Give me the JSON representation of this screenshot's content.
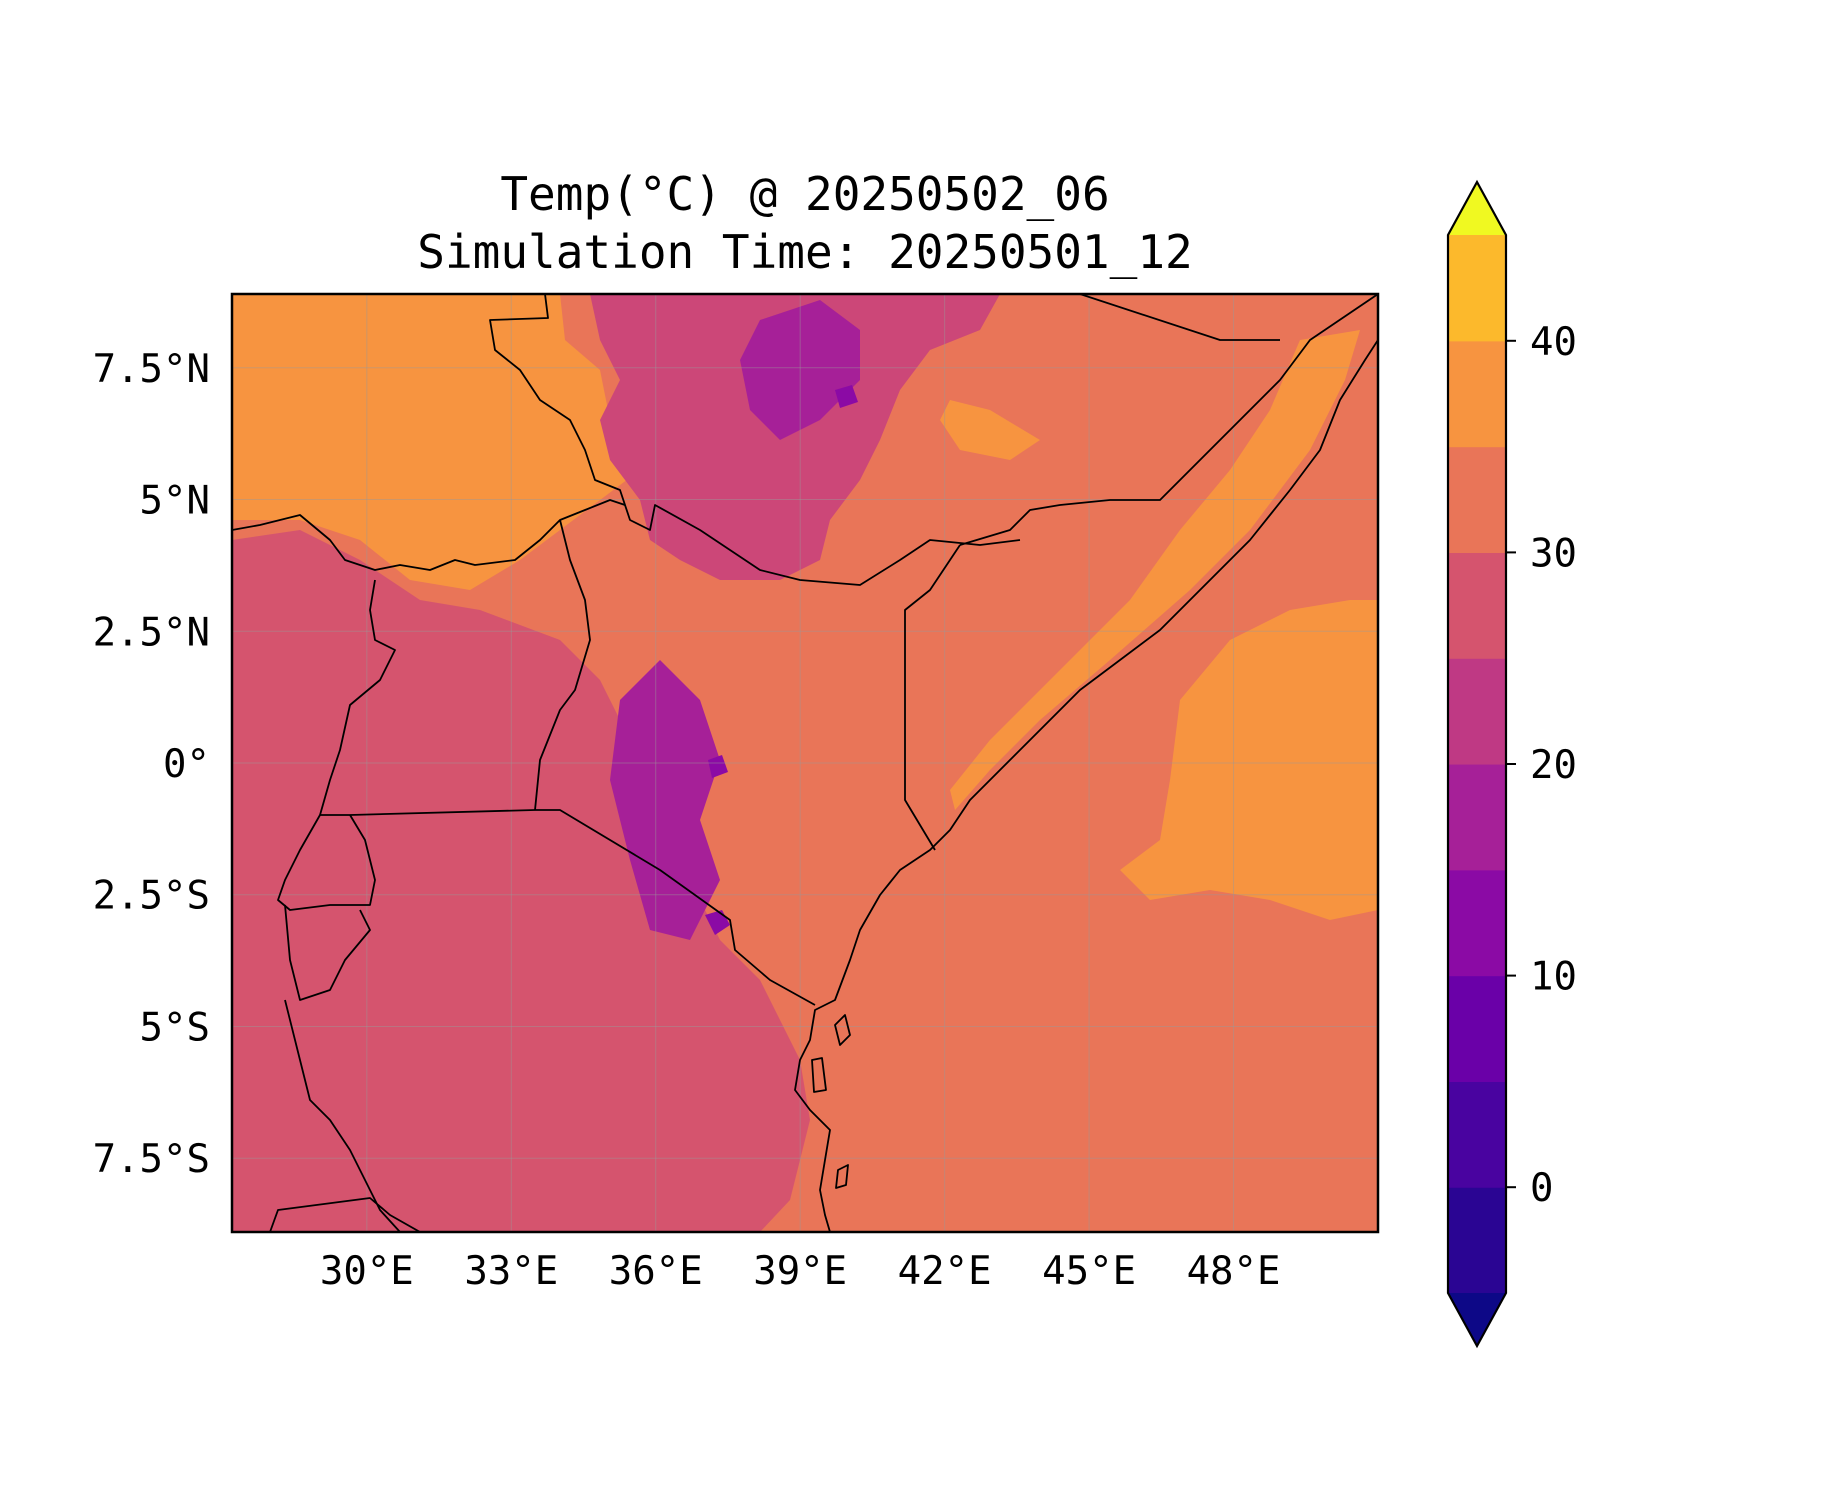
{
  "title": {
    "line1": "Temp(°C) @ 20250502_06",
    "line2": "Simulation Time: 20250501_12"
  },
  "map": {
    "lon_range": [
      27.2,
      51.0
    ],
    "lat_range": [
      -8.9,
      8.9
    ],
    "lon_ticks": [
      30,
      33,
      36,
      39,
      42,
      45,
      48
    ],
    "lon_tick_labels": [
      "30°E",
      "33°E",
      "36°E",
      "39°E",
      "42°E",
      "45°E",
      "48°E"
    ],
    "lat_ticks": [
      7.5,
      5,
      2.5,
      0,
      -2.5,
      -5,
      -7.5
    ],
    "lat_tick_labels": [
      "7.5°N",
      "5°N",
      "2.5°N",
      "0°",
      "2.5°S",
      "5°S",
      "7.5°S"
    ],
    "gridlines": true,
    "background_level_color": "#e97558",
    "region_fields": [
      {
        "region": "north-west lowlands (South Sudan)",
        "level": "30-35",
        "color": "#f79440"
      },
      {
        "region": "Ethiopian highlands",
        "level": "15-25",
        "color": "#cc4778"
      },
      {
        "region": "Great Lakes / Tanzania interior",
        "level": "20-25",
        "color": "#d5546e"
      },
      {
        "region": "Kenya / Somalia lowlands and ocean",
        "level": "25-30",
        "color": "#e97558"
      },
      {
        "region": "Somali coastal strip",
        "level": "30-35",
        "color": "#f79440"
      },
      {
        "region": "Indian Ocean warm patch",
        "level": "30-35",
        "color": "#f79440"
      },
      {
        "region": "Rift highlands minima",
        "level": "10-15",
        "color": "#a62098"
      }
    ]
  },
  "colorbar": {
    "levels": [
      -5,
      0,
      5,
      10,
      15,
      20,
      25,
      30,
      35,
      40,
      45
    ],
    "colors": [
      "#2a0593",
      "#4903a0",
      "#6a00a8",
      "#8b0aa5",
      "#a62098",
      "#bf3984",
      "#d5546e",
      "#e97558",
      "#f79440",
      "#fcb92c",
      "#f4e01f"
    ],
    "under_color": "#0d0887",
    "over_color": "#f0f921",
    "ticks": [
      0,
      10,
      20,
      30,
      40
    ],
    "tick_labels": [
      "0",
      "10",
      "20",
      "30",
      "40"
    ],
    "extend": "both"
  }
}
